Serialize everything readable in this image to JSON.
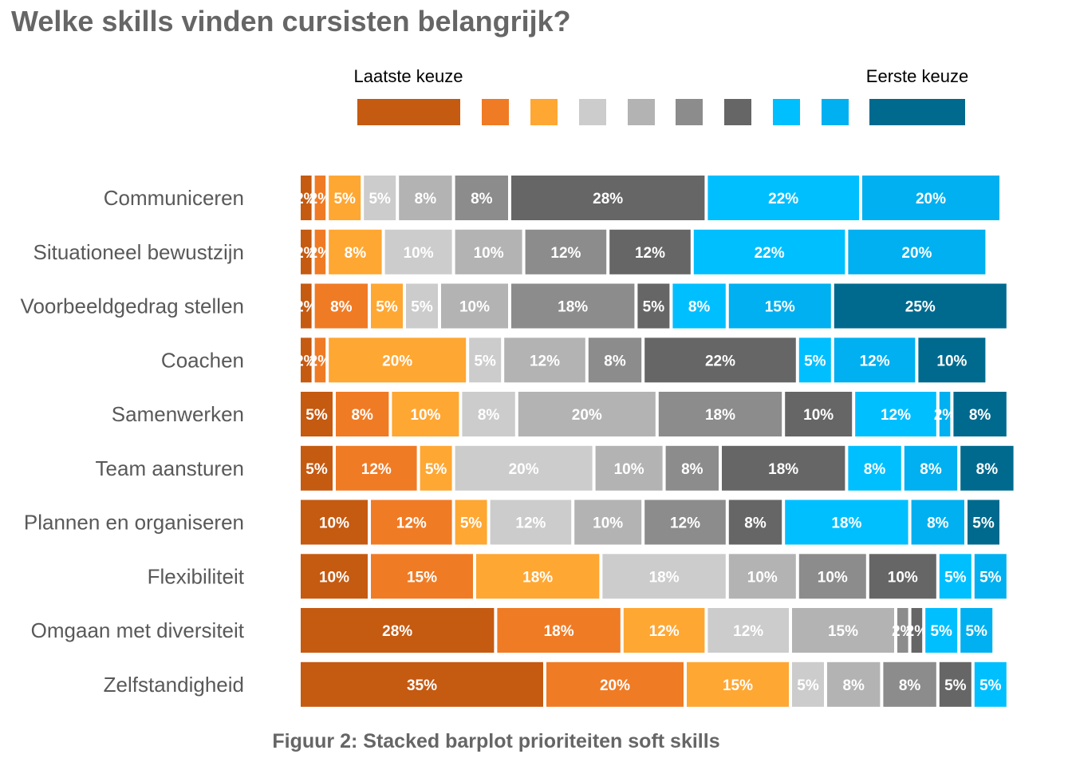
{
  "chart_data": {
    "type": "bar",
    "orientation": "horizontal",
    "stacked": true,
    "title": "Welke skills vinden cursisten belangrijk?",
    "caption": "Figuur 2: Stacked barplot prioriteiten soft skills",
    "legend": {
      "placement": "top",
      "left_label": "Laatste keuze",
      "right_label": "Eerste keuze",
      "colors": [
        "#c55a11",
        "#f07b25",
        "#ffa733",
        "#cccccc",
        "#b3b3b3",
        "#8c8c8c",
        "#666666",
        "#00bfff",
        "#00b0f0",
        "#006a8e"
      ]
    },
    "grid": false,
    "categories": [
      "Communiceren",
      "Situationeel bewustzijn",
      "Voorbeeldgedrag stellen",
      "Coachen",
      "Samenwerken",
      "Team aansturen",
      "Plannen en organiseren",
      "Flexibiliteit",
      "Omgaan met diversiteit",
      "Zelfstandigheid"
    ],
    "series": [
      {
        "values": [
          2,
          2,
          2,
          2,
          5,
          5,
          10,
          10,
          28,
          35
        ]
      },
      {
        "values": [
          2,
          2,
          8,
          2,
          8,
          12,
          12,
          15,
          18,
          20
        ]
      },
      {
        "values": [
          5,
          8,
          5,
          20,
          10,
          5,
          5,
          18,
          12,
          15
        ]
      },
      {
        "values": [
          5,
          10,
          5,
          5,
          8,
          20,
          12,
          18,
          12,
          5
        ]
      },
      {
        "values": [
          8,
          10,
          10,
          12,
          20,
          10,
          10,
          10,
          15,
          8
        ]
      },
      {
        "values": [
          8,
          12,
          18,
          8,
          18,
          8,
          12,
          10,
          2,
          8
        ]
      },
      {
        "values": [
          28,
          12,
          5,
          22,
          10,
          18,
          8,
          10,
          2,
          5
        ]
      },
      {
        "values": [
          22,
          22,
          8,
          5,
          12,
          8,
          18,
          5,
          5,
          5
        ]
      },
      {
        "values": [
          20,
          20,
          15,
          12,
          2,
          8,
          8,
          5,
          5,
          0
        ]
      },
      {
        "values": [
          0,
          0,
          25,
          10,
          8,
          8,
          5,
          0,
          0,
          0
        ]
      }
    ]
  }
}
